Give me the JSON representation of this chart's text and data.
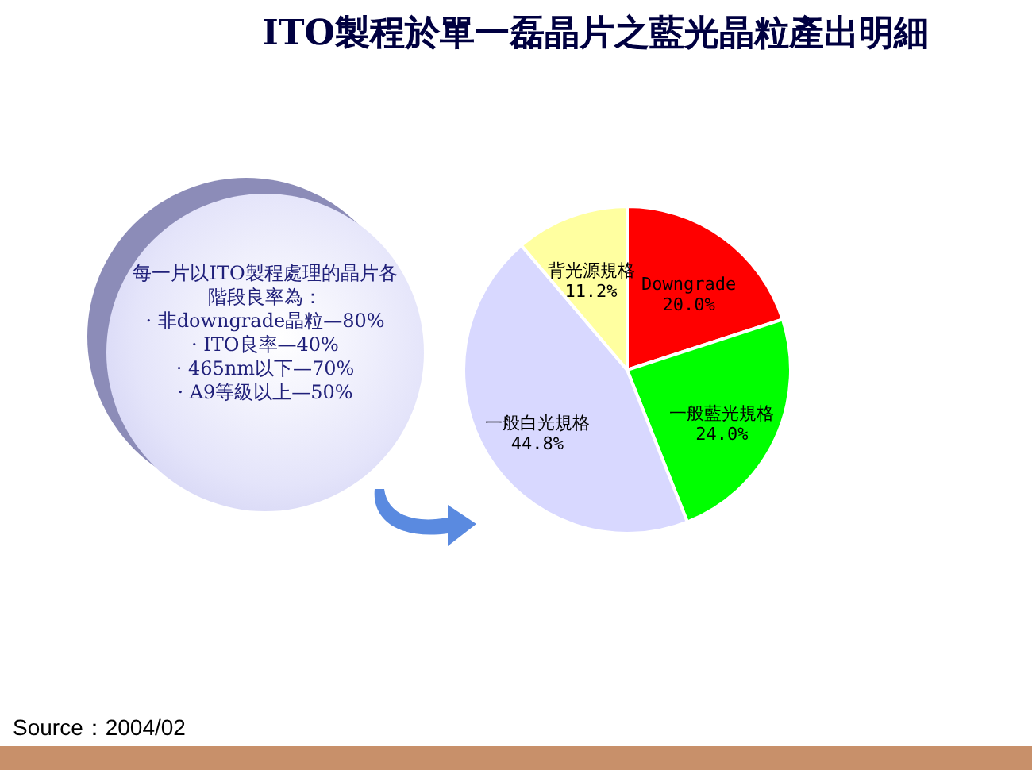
{
  "chart_data": {
    "type": "pie",
    "title": "ITO製程於單一磊晶片之藍光晶粒產出明細",
    "categories": [
      "Downgrade",
      "一般藍光規格",
      "一般白光規格",
      "背光源規格"
    ],
    "values": [
      20.0,
      24.0,
      44.8,
      11.2
    ],
    "colors": [
      "#ff0000",
      "#00ff00",
      "#d8d8ff",
      "#ffffa0"
    ],
    "value_labels": [
      "20.0%",
      "24.0%",
      "44.8%",
      "11.2%"
    ],
    "legend": false,
    "annotations": [
      "每一片以ITO製程處理的晶片各階段良率為：",
      "· 非downgrade晶粒—80%",
      "· ITO良率—40%",
      "· 465nm以下—70%",
      "· A9等級以上—50%",
      "Source：2004/02"
    ]
  }
}
